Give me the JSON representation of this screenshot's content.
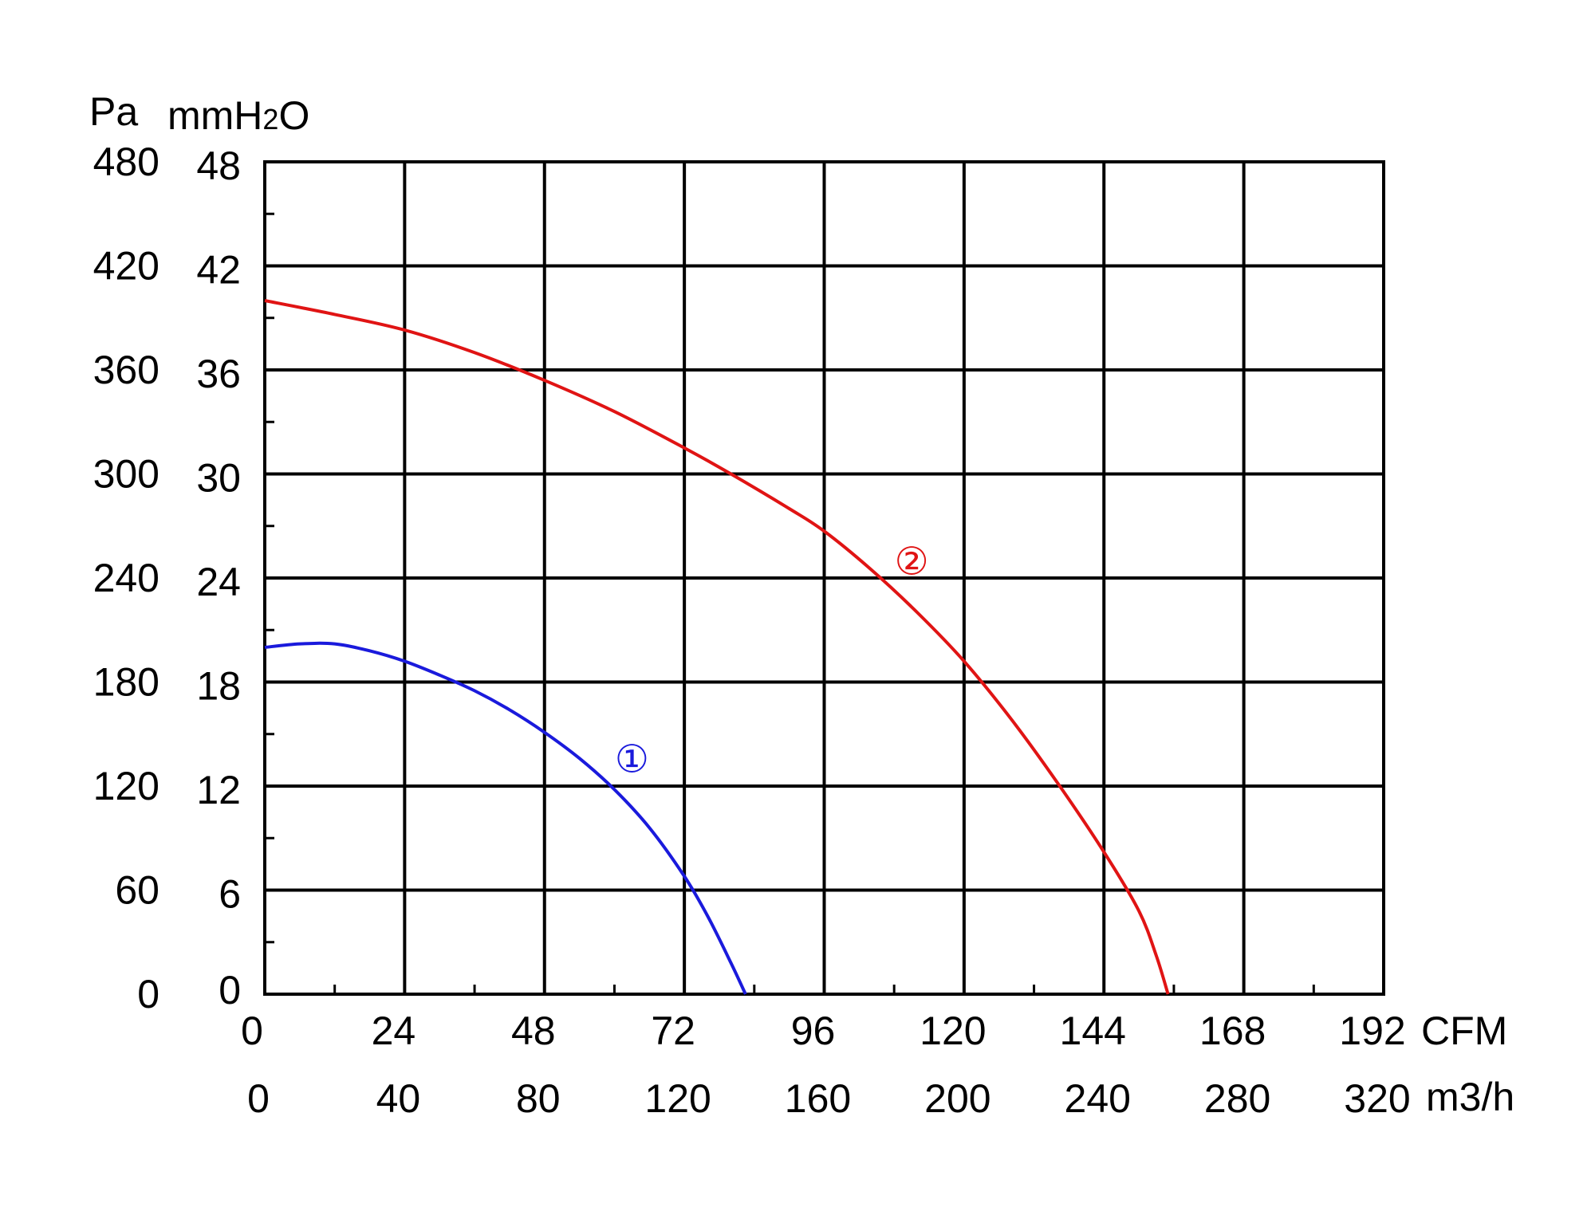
{
  "chart_data": {
    "type": "line",
    "title": "",
    "y_units": {
      "left": "Pa",
      "right_main": "mmH",
      "right_sub": "2",
      "right_end": "O"
    },
    "x_units": {
      "primary": "CFM",
      "secondary": "m3/h"
    },
    "y_ticks_pa": [
      "0",
      "60",
      "120",
      "180",
      "240",
      "300",
      "360",
      "420",
      "480"
    ],
    "y_ticks_mmh2o": [
      "0",
      "6",
      "12",
      "18",
      "24",
      "30",
      "36",
      "42",
      "48"
    ],
    "x_ticks_cfm": [
      "0",
      "24",
      "48",
      "72",
      "96",
      "120",
      "144",
      "168",
      "192"
    ],
    "x_ticks_m3h": [
      "0",
      "40",
      "80",
      "120",
      "160",
      "200",
      "240",
      "280",
      "320"
    ],
    "xlim": [
      0,
      192
    ],
    "ylim": [
      0,
      48
    ],
    "grid": true,
    "series": [
      {
        "name": "①",
        "color": "#1a1adc",
        "x": [
          0,
          6,
          12,
          18,
          24,
          30,
          36,
          42,
          48,
          54,
          60,
          66,
          72,
          76,
          80,
          82.5
        ],
        "y": [
          20.0,
          20.2,
          20.2,
          19.8,
          19.2,
          18.4,
          17.5,
          16.4,
          15.1,
          13.6,
          11.8,
          9.6,
          6.8,
          4.5,
          1.8,
          0
        ]
      },
      {
        "name": "②",
        "color": "#e01414",
        "x": [
          0,
          12,
          24,
          36,
          48,
          60,
          72,
          80,
          90,
          96,
          104,
          112,
          120,
          128,
          136,
          144,
          150,
          153,
          155
        ],
        "y": [
          40.0,
          39.2,
          38.3,
          37.0,
          35.4,
          33.6,
          31.5,
          30.0,
          28.0,
          26.7,
          24.5,
          22.0,
          19.2,
          15.9,
          12.2,
          8.2,
          4.8,
          2.2,
          0
        ]
      }
    ]
  }
}
